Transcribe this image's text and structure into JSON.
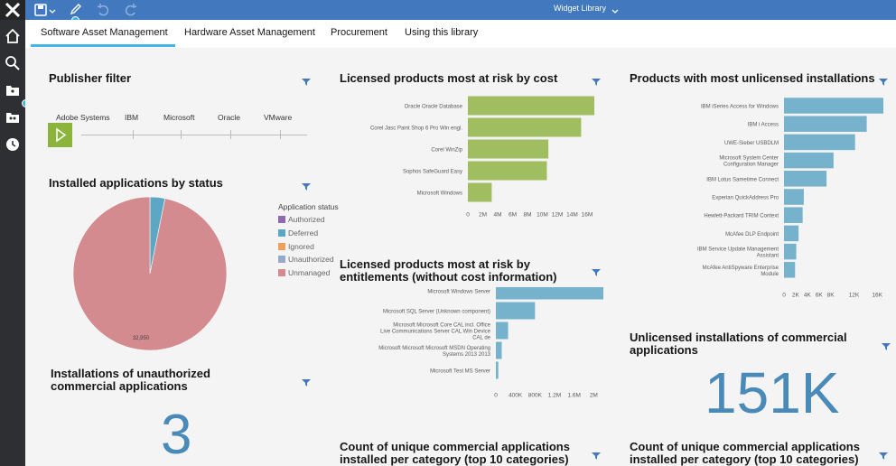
{
  "topbar": {
    "title": "Widget Library",
    "colors": {
      "bar": "#4178be",
      "accent": "#41b6e6"
    }
  },
  "tabs": [
    {
      "label": "Software Asset Management"
    },
    {
      "label": "Hardware Asset Management"
    },
    {
      "label": "Procurement"
    },
    {
      "label": "Using this library"
    }
  ],
  "widgets": {
    "publisher_filter": {
      "title": "Publisher filter",
      "publishers": [
        "Adobe Systems",
        "IBM",
        "Microsoft",
        "Oracle",
        "VMware"
      ]
    },
    "installed_status": {
      "title": "Installed applications by status",
      "legend_title": "Application status"
    },
    "unauthorized": {
      "title": "Installations of unauthorized commercial applications",
      "value": "3"
    },
    "risk_cost": {
      "title": "Licensed products most at risk by cost"
    },
    "risk_entitlements": {
      "title": "Licensed products most at risk by entitlements (without cost information)"
    },
    "unique_cat_1": {
      "title": "Count of unique commercial applications installed per category (top 10 categories)"
    },
    "most_unlicensed": {
      "title": "Products with most unlicensed installations"
    },
    "unlicensed_kpi": {
      "title": "Unlicensed installations of commercial applications",
      "value": "151K"
    },
    "unique_cat_2": {
      "title": "Count of unique commercial applications installed per category (top 10 categories)"
    }
  },
  "chart_data": [
    {
      "id": "risk_cost",
      "type": "bar",
      "orientation": "horizontal",
      "categories": [
        "Oracle Oracle Database",
        "Corel Jasc Paint Shop 6 Pro Win engl.",
        "Corel WinZip",
        "Sophos SafeGuard Easy",
        "Microsoft Windows"
      ],
      "values": [
        19000000,
        15200000,
        10800000,
        10600000,
        3200000
      ],
      "tick_labels": [
        "0",
        "2M",
        "4M",
        "6M",
        "8M",
        "10M",
        "12M",
        "14M",
        "16M",
        "18M",
        "20M"
      ],
      "xlim": [
        0,
        20000000
      ],
      "color": "#a0bd60"
    },
    {
      "id": "risk_entitlements",
      "type": "bar",
      "orientation": "horizontal",
      "categories": [
        "Microsoft Windows Server",
        "Microsoft SQL Server (Unknown component)",
        "Microsoft Microsoft Core CAL incl. Office Live Communications Server CAL Win Device CAL de",
        "Microsoft Microsoft Microsoft MSDN Operating Systems 2013 2013",
        "Microsoft Test MS Server"
      ],
      "values": [
        2250000,
        800000,
        250000,
        120000,
        50000
      ],
      "tick_labels": [
        "0",
        "400K",
        "800K",
        "1.2M",
        "1.6M",
        "2M",
        "2.4M"
      ],
      "xlim": [
        0,
        2400000
      ],
      "color": "#76b2cc"
    },
    {
      "id": "most_unlicensed",
      "type": "bar",
      "orientation": "horizontal",
      "categories": [
        "IBM iSeries Access for Windows",
        "IBM i Access",
        "UWE-Sieber USBDLM",
        "Microsoft System Center Configuration Manager",
        "IBM Lotus Sametime Connect",
        "Experian QuickAddress Pro",
        "Hewlett-Packard TRIM Context",
        "McAfee DLP Endpoint",
        "IBM Service Update Management Assistant",
        "McAfee AntiSpyware Enterprise Module"
      ],
      "values": [
        18500,
        14200,
        12200,
        8500,
        7300,
        3400,
        3200,
        2500,
        2100,
        1900
      ],
      "tick_labels": [
        "0",
        "2K",
        "4K",
        "6K",
        "8K",
        "12K",
        "16K",
        "20K"
      ],
      "tick_values": [
        0,
        2000,
        4000,
        6000,
        8000,
        12000,
        16000,
        20000
      ],
      "xlim": [
        0,
        20000
      ],
      "color": "#76b2cc"
    },
    {
      "id": "installed_status",
      "type": "pie",
      "legend": [
        "Authorized",
        "Deferred",
        "Ignored",
        "Unauthorized",
        "Unmanaged"
      ],
      "colors": [
        "#8c6bb1",
        "#5ba7c4",
        "#f0a05a",
        "#94a8d0",
        "#d48b8f"
      ],
      "values": [
        0,
        1075,
        0,
        0,
        32950
      ],
      "data_labels": [
        "",
        "",
        "",
        "",
        "32,950"
      ]
    }
  ]
}
